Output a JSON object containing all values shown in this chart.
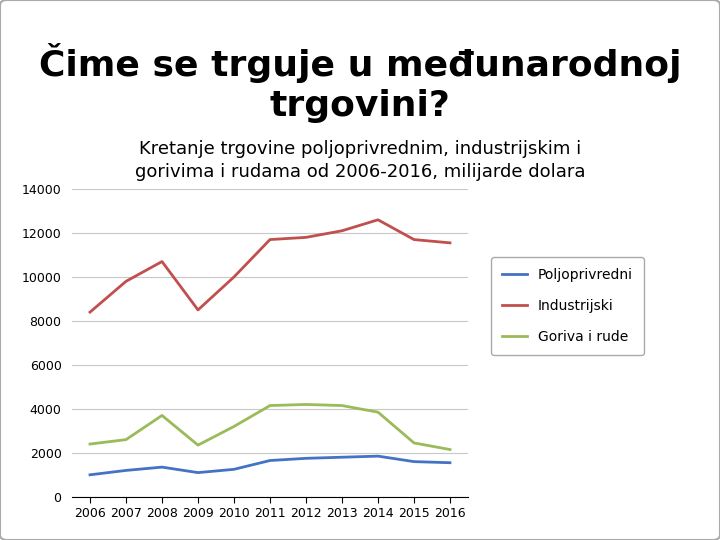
{
  "title": "Čime se trguje u međunarodnoj\ntrgovini?",
  "subtitle": "Kretanje trgovine poljoprivrednim, industrijskim i\ngorivima i rudama od 2006-2016, milijarde dolara",
  "years": [
    2006,
    2007,
    2008,
    2009,
    2010,
    2011,
    2012,
    2013,
    2014,
    2015,
    2016
  ],
  "poljoprivredni": [
    1000,
    1200,
    1350,
    1100,
    1250,
    1650,
    1750,
    1800,
    1850,
    1600,
    1550
  ],
  "industrijski": [
    8400,
    9800,
    10700,
    8500,
    10000,
    11700,
    11800,
    12100,
    12600,
    11700,
    11550
  ],
  "goriva_rude": [
    2400,
    2600,
    3700,
    2350,
    3200,
    4150,
    4200,
    4150,
    3850,
    2450,
    2150
  ],
  "color_poljoprivredni": "#4472C4",
  "color_industrijski": "#C0504D",
  "color_goriva_rude": "#9BBB59",
  "ylim": [
    0,
    14000
  ],
  "yticks": [
    0,
    2000,
    4000,
    6000,
    8000,
    10000,
    12000,
    14000
  ],
  "legend_labels": [
    "Poljoprivredni",
    "Industrijski",
    "Goriva i rude"
  ],
  "background_color": "#FFFFFF",
  "grid_color": "#C8C8C8",
  "title_fontsize": 26,
  "subtitle_fontsize": 13,
  "tick_fontsize": 9
}
